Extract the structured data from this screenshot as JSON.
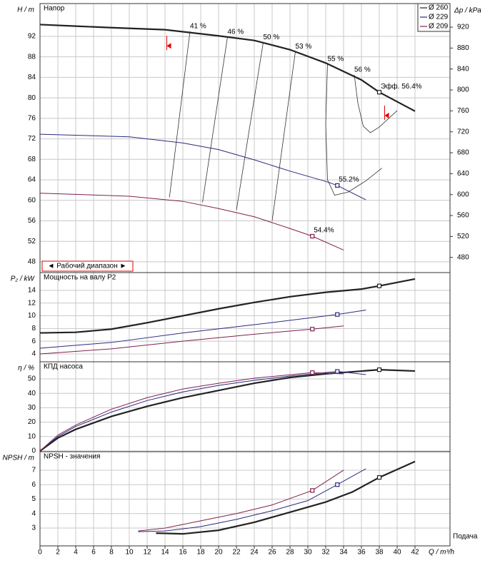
{
  "chart_data": [
    {
      "type": "line",
      "title": "Напор",
      "y_label": "H / m",
      "y2_label": "Δp / kPa",
      "xlim": [
        0,
        45.92
      ],
      "ylim": [
        45.9,
        98.4
      ],
      "yticks": [
        48,
        52,
        56,
        60,
        64,
        68,
        72,
        76,
        80,
        84,
        88,
        92
      ],
      "y2lim": [
        451,
        965
      ],
      "y2ticks": [
        480,
        520,
        560,
        600,
        640,
        680,
        720,
        760,
        800,
        840,
        880,
        920
      ],
      "grid": true,
      "legend": "top-right",
      "series": [
        {
          "name": "Ø 260",
          "color": "#222222",
          "width": 2.2,
          "x": [
            0,
            4,
            8,
            14,
            20,
            24,
            28,
            32,
            36,
            38,
            42
          ],
          "values": [
            94.3,
            94.0,
            93.7,
            93.3,
            92.1,
            91.2,
            89.4,
            86.8,
            83.5,
            81.1,
            77.4
          ],
          "point_x": 38,
          "point_value": 81.1,
          "point_label": "Эфф.  56.4%"
        },
        {
          "name": "Ø 229",
          "color": "#2a2a80",
          "width": 1,
          "x": [
            0,
            10,
            16,
            20,
            24,
            28,
            32,
            33.3,
            36.5
          ],
          "values": [
            72.9,
            72.4,
            71.2,
            69.9,
            67.9,
            65.7,
            63.7,
            62.9,
            60.1
          ],
          "point_x": 33.3,
          "point_value": 62.9,
          "point_label": "55.2%"
        },
        {
          "name": "Ø 209",
          "color": "#802050",
          "width": 1,
          "x": [
            0,
            10,
            16,
            20,
            24,
            28,
            30.5,
            34
          ],
          "values": [
            61.4,
            60.8,
            59.8,
            58.4,
            56.8,
            54.5,
            53.0,
            50.3
          ],
          "point_x": 30.5,
          "point_value": 53.0,
          "point_label": "54.4%"
        }
      ],
      "iso_lines": [
        {
          "label": "41 %",
          "x": [
            16.8,
            14.5
          ],
          "values": [
            93.0,
            60.6
          ]
        },
        {
          "label": "46 %",
          "x": [
            21.0,
            18.2
          ],
          "values": [
            91.9,
            59.6
          ]
        },
        {
          "label": "50 %",
          "x": [
            25.0,
            22.0
          ],
          "values": [
            90.8,
            58.1
          ]
        },
        {
          "label": "53 %",
          "x": [
            28.6,
            26.0
          ],
          "values": [
            89.0,
            56.0
          ]
        },
        {
          "label": "55 %",
          "x": [
            32.2,
            32.0,
            32.2,
            33.0,
            34.5,
            36.5,
            38.3
          ],
          "values": [
            86.6,
            75.0,
            64.0,
            61.0,
            61.6,
            63.8,
            66.3
          ]
        },
        {
          "label": "56 %",
          "x": [
            35.2,
            35.6,
            36.2,
            37.0,
            38.0,
            40.0
          ],
          "values": [
            84.5,
            79.0,
            74.5,
            73.2,
            74.3,
            77.5
          ]
        }
      ],
      "range_label": "◄ Рабочий диапазон ►",
      "range_markers": [
        {
          "x": 14.2,
          "value": 92.1
        },
        {
          "x": 38.6,
          "value": 78.5
        }
      ]
    },
    {
      "type": "line",
      "title": "Мощность на валу P2",
      "y_label": "P₂ / kW",
      "xlim": [
        0,
        45.92
      ],
      "ylim": [
        2.76,
        16.8
      ],
      "yticks": [
        4,
        6,
        8,
        10,
        12,
        14
      ],
      "grid": true,
      "series": [
        {
          "name": "Ø 260",
          "color": "#222222",
          "width": 2.2,
          "x": [
            0,
            4,
            8,
            12,
            16,
            20,
            24,
            28,
            32,
            36,
            38,
            42
          ],
          "values": [
            7.3,
            7.4,
            7.9,
            8.9,
            10.0,
            11.1,
            12.1,
            13.0,
            13.7,
            14.2,
            14.7,
            15.8
          ],
          "point_x": 38,
          "point_value": 14.7
        },
        {
          "name": "Ø 229",
          "color": "#2a2a80",
          "width": 1,
          "x": [
            0,
            8,
            16,
            24,
            33.3,
            36.5
          ],
          "values": [
            4.9,
            5.8,
            7.3,
            8.6,
            10.2,
            10.9
          ],
          "point_x": 33.3,
          "point_value": 10.2
        },
        {
          "name": "Ø 209",
          "color": "#802050",
          "width": 1,
          "x": [
            0,
            8,
            16,
            24,
            30.5,
            34
          ],
          "values": [
            4.0,
            4.8,
            6.0,
            7.1,
            7.9,
            8.4
          ],
          "point_x": 30.5,
          "point_value": 7.9
        }
      ]
    },
    {
      "type": "line",
      "title": "КПД насоса",
      "y_label": "η / %",
      "xlim": [
        0,
        45.92
      ],
      "ylim": [
        -0.5,
        61.9
      ],
      "yticks": [
        0,
        10,
        20,
        30,
        40,
        50
      ],
      "grid": true,
      "series": [
        {
          "name": "Ø 260",
          "color": "#222222",
          "width": 2.2,
          "x": [
            0,
            2,
            4,
            8,
            12,
            16,
            20,
            24,
            28,
            32,
            38,
            42
          ],
          "values": [
            0,
            9,
            15,
            24,
            31,
            37,
            42,
            47,
            51,
            53.5,
            56.4,
            55.5
          ],
          "point_x": 38,
          "point_value": 56.4
        },
        {
          "name": "Ø 229",
          "color": "#2a2a80",
          "width": 1,
          "x": [
            0,
            2,
            4,
            8,
            12,
            16,
            20,
            24,
            28,
            33.3,
            36.5
          ],
          "values": [
            0,
            10,
            17,
            27,
            35,
            41,
            45.5,
            49,
            52,
            55.2,
            53
          ],
          "point_x": 33.3,
          "point_value": 55.2
        },
        {
          "name": "Ø 209",
          "color": "#802050",
          "width": 1,
          "x": [
            0,
            2,
            4,
            8,
            12,
            16,
            20,
            24,
            30.5,
            34
          ],
          "values": [
            0,
            11,
            18,
            29,
            37,
            43,
            47,
            50.5,
            54.4,
            53.5
          ],
          "point_x": 30.5,
          "point_value": 54.4
        }
      ]
    },
    {
      "type": "line",
      "title": "NPSH - значения",
      "y_label": "NPSH / m",
      "x_label": "Q / m³/h",
      "x_caption": "Подача",
      "xlim": [
        0,
        45.92
      ],
      "ylim": [
        1.77,
        8.28
      ],
      "yticks": [
        3,
        4,
        5,
        6,
        7
      ],
      "xticks": [
        0,
        2,
        4,
        6,
        8,
        10,
        12,
        14,
        16,
        18,
        20,
        22,
        24,
        26,
        28,
        30,
        32,
        34,
        36,
        38,
        40,
        42
      ],
      "grid": true,
      "series": [
        {
          "name": "Ø 260",
          "color": "#222222",
          "width": 2.2,
          "x": [
            13,
            16,
            20,
            24,
            28,
            32,
            35,
            38,
            42
          ],
          "values": [
            2.65,
            2.6,
            2.85,
            3.4,
            4.1,
            4.8,
            5.5,
            6.5,
            7.6
          ],
          "point_x": 38,
          "point_value": 6.5
        },
        {
          "name": "Ø 229",
          "color": "#2a2a80",
          "width": 1,
          "x": [
            11,
            14,
            18,
            22,
            26,
            30,
            33.3,
            36.5
          ],
          "values": [
            2.75,
            2.8,
            3.1,
            3.6,
            4.2,
            4.9,
            6.0,
            7.1
          ],
          "point_x": 33.3,
          "point_value": 6.0
        },
        {
          "name": "Ø 209",
          "color": "#802050",
          "width": 1,
          "x": [
            11,
            14,
            18,
            22,
            26,
            30.5,
            34
          ],
          "values": [
            2.8,
            3.0,
            3.5,
            4.0,
            4.6,
            5.6,
            7.0
          ],
          "point_x": 30.5,
          "point_value": 5.6
        }
      ]
    }
  ]
}
